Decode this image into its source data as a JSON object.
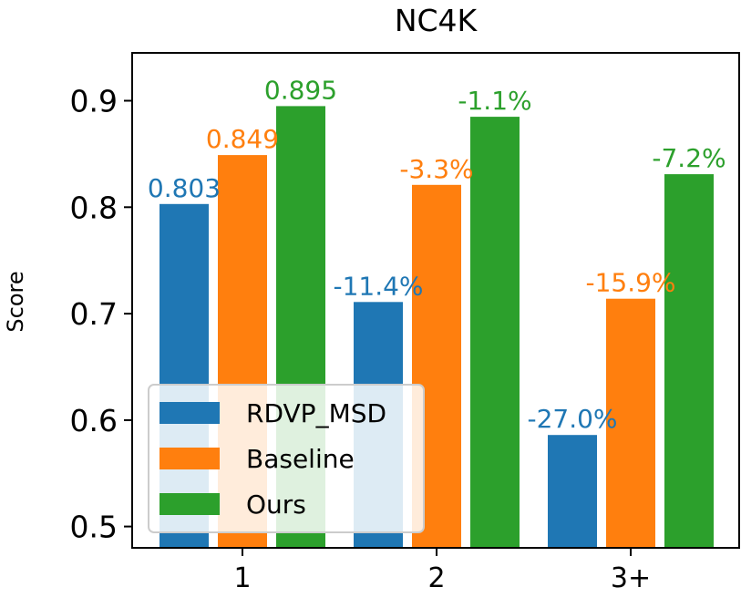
{
  "chart_data": {
    "type": "bar",
    "title": "NC4K",
    "xlabel": "",
    "ylabel": "Score",
    "categories": [
      "1",
      "2",
      "3+"
    ],
    "ylim": [
      0.48,
      0.945
    ],
    "yticks": [
      0.5,
      0.6,
      0.7,
      0.8,
      0.9
    ],
    "ytick_labels": [
      "0.5",
      "0.6",
      "0.7",
      "0.8",
      "0.9"
    ],
    "series": [
      {
        "name": "RDVP_MSD",
        "color": "#1f77b4",
        "values": [
          0.803,
          0.711,
          0.586
        ],
        "labels": [
          "0.803",
          "-11.4%",
          "-27.0%"
        ]
      },
      {
        "name": "Baseline",
        "color": "#ff7f0e",
        "values": [
          0.849,
          0.821,
          0.714
        ],
        "labels": [
          "0.849",
          "-3.3%",
          "-15.9%"
        ]
      },
      {
        "name": "Ours",
        "color": "#2ca02c",
        "values": [
          0.895,
          0.885,
          0.831
        ],
        "labels": [
          "0.895",
          "-1.1%",
          "-7.2%"
        ]
      }
    ],
    "legend": {
      "position": "lower-left",
      "entries": [
        "RDVP_MSD",
        "Baseline",
        "Ours"
      ]
    },
    "grid": false
  }
}
